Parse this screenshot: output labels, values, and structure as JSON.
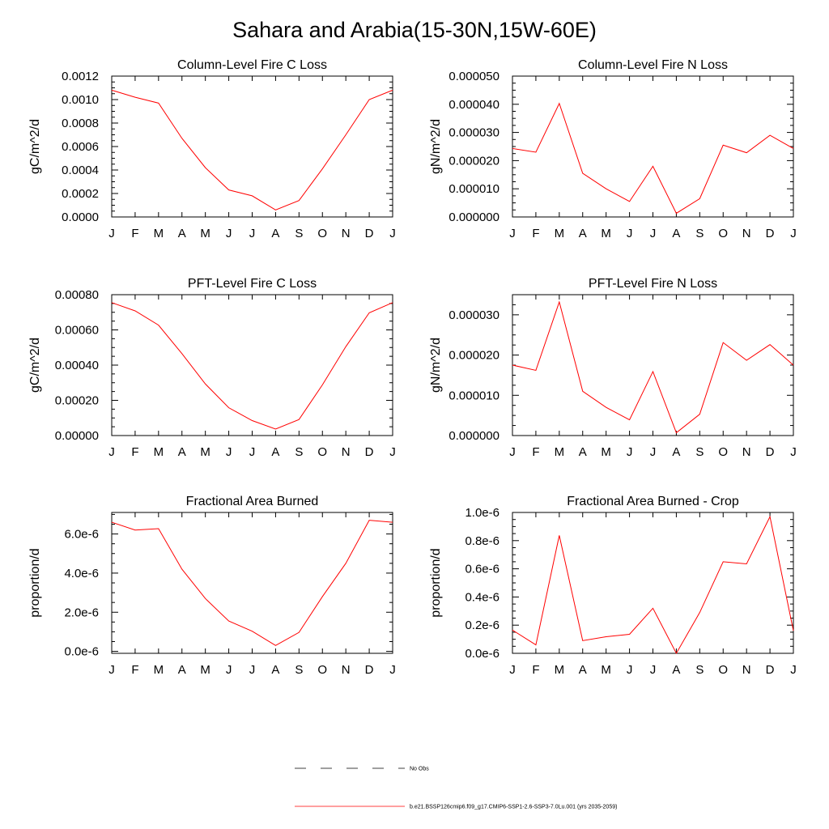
{
  "page_title": "Sahara and Arabia(15-30N,15W-60E)",
  "series_color": "#ff0000",
  "legend": {
    "items": [
      {
        "label": "No Obs",
        "style": "dashed",
        "color": "#000000"
      },
      {
        "label": "b.e21.BSSP126cmip6.f09_g17.CMIP6-SSP1-2.6-SSP3-7.0Lu.001 (yrs 2035-2059)",
        "style": "solid",
        "color": "#ff0000"
      }
    ]
  },
  "chart_data": [
    {
      "type": "line",
      "title": "Column-Level Fire C Loss",
      "ylabel": "gC/m^2/d",
      "xlabel": "",
      "categories": [
        "J",
        "F",
        "M",
        "A",
        "M",
        "J",
        "J",
        "A",
        "S",
        "O",
        "N",
        "D",
        "J"
      ],
      "ylim": [
        0,
        0.0012
      ],
      "yticks": [
        "0.0000",
        "0.0002",
        "0.0004",
        "0.0006",
        "0.0008",
        "0.0010",
        "0.0012"
      ],
      "values": [
        0.00108,
        0.00102,
        0.00097,
        0.00067,
        0.00042,
        0.00023,
        0.00018,
        6e-05,
        0.00014,
        0.00041,
        0.0007,
        0.001,
        0.00108
      ]
    },
    {
      "type": "line",
      "title": "Column-Level Fire N Loss",
      "ylabel": "gN/m^2/d",
      "xlabel": "",
      "categories": [
        "J",
        "F",
        "M",
        "A",
        "M",
        "J",
        "J",
        "A",
        "S",
        "O",
        "N",
        "D",
        "J"
      ],
      "ylim": [
        0,
        5e-05
      ],
      "yticks": [
        "0.000000",
        "0.000010",
        "0.000020",
        "0.000030",
        "0.000040",
        "0.000050"
      ],
      "values": [
        2.43e-05,
        2.3e-05,
        4.03e-05,
        1.55e-05,
        1e-05,
        5.5e-06,
        1.8e-05,
        1.3e-06,
        6.5e-06,
        2.55e-05,
        2.28e-05,
        2.9e-05,
        2.43e-05
      ]
    },
    {
      "type": "line",
      "title": "PFT-Level Fire C Loss",
      "ylabel": "gC/m^2/d",
      "xlabel": "",
      "categories": [
        "J",
        "F",
        "M",
        "A",
        "M",
        "J",
        "J",
        "A",
        "S",
        "O",
        "N",
        "D",
        "J"
      ],
      "ylim": [
        0,
        0.0008
      ],
      "yticks": [
        "0.00000",
        "0.00020",
        "0.00040",
        "0.00060",
        "0.00080"
      ],
      "values": [
        0.000755,
        0.000708,
        0.000627,
        0.000465,
        0.000293,
        0.000158,
        8.5e-05,
        3.7e-05,
        9.1e-05,
        0.000288,
        0.000505,
        0.000697,
        0.000755
      ]
    },
    {
      "type": "line",
      "title": "PFT-Level Fire N Loss",
      "ylabel": "gN/m^2/d",
      "xlabel": "",
      "categories": [
        "J",
        "F",
        "M",
        "A",
        "M",
        "J",
        "J",
        "A",
        "S",
        "O",
        "N",
        "D",
        "J"
      ],
      "ylim": [
        0,
        3.5e-05
      ],
      "yticks": [
        "0.000000",
        "0.000010",
        "0.000020",
        "0.000030"
      ],
      "values": [
        1.75e-05,
        1.62e-05,
        3.32e-05,
        1.1e-05,
        7e-06,
        3.9e-06,
        1.59e-05,
        7e-07,
        5.3e-06,
        2.31e-05,
        1.87e-05,
        2.26e-05,
        1.75e-05
      ]
    },
    {
      "type": "line",
      "title": "Fractional Area Burned",
      "ylabel": "proportion/d",
      "xlabel": "",
      "categories": [
        "J",
        "F",
        "M",
        "A",
        "M",
        "J",
        "J",
        "A",
        "S",
        "O",
        "N",
        "D",
        "J"
      ],
      "ylim": [
        -1e-07,
        7.1e-06
      ],
      "yticks": [
        "0.0e-6",
        "2.0e-6",
        "4.0e-6",
        "6.0e-6"
      ],
      "ytick_values": [
        0,
        2e-06,
        4e-06,
        6e-06
      ],
      "values": [
        6.6e-06,
        6.2e-06,
        6.27e-06,
        4.2e-06,
        2.7e-06,
        1.55e-06,
        1.03e-06,
        3e-07,
        9.7e-07,
        2.8e-06,
        4.5e-06,
        6.7e-06,
        6.6e-06
      ]
    },
    {
      "type": "line",
      "title": "Fractional Area Burned - Crop",
      "ylabel": "proportion/d",
      "xlabel": "",
      "categories": [
        "J",
        "F",
        "M",
        "A",
        "M",
        "J",
        "J",
        "A",
        "S",
        "O",
        "N",
        "D",
        "J"
      ],
      "ylim": [
        0,
        1e-06
      ],
      "yticks": [
        "0.0e-6",
        "0.2e-6",
        "0.4e-6",
        "0.6e-6",
        "0.8e-6",
        "1.0e-6"
      ],
      "values": [
        1.65e-07,
        6e-08,
        8.37e-07,
        9e-08,
        1.18e-07,
        1.35e-07,
        3.2e-07,
        0.0,
        2.9e-07,
        6.5e-07,
        6.35e-07,
        9.7e-07,
        1.6e-07
      ]
    }
  ]
}
